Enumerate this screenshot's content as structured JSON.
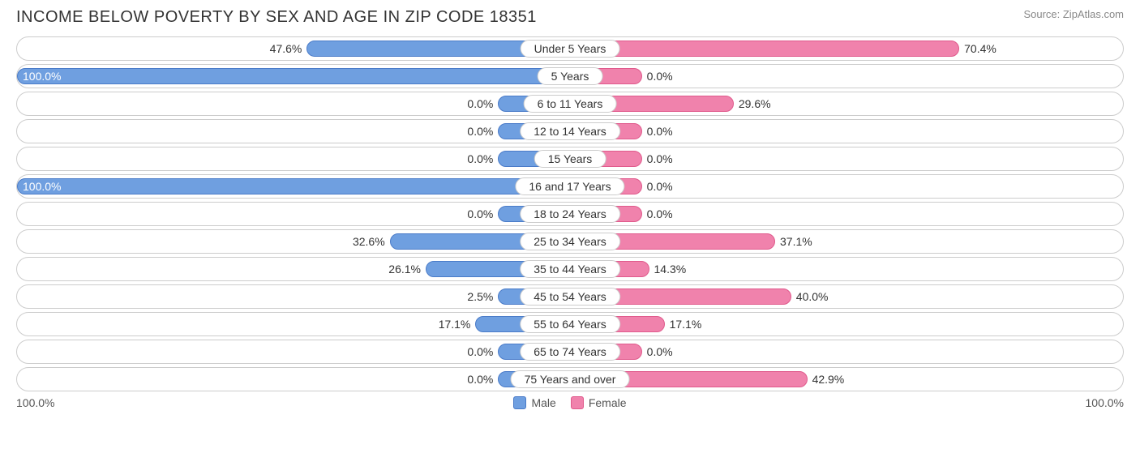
{
  "title": "INCOME BELOW POVERTY BY SEX AND AGE IN ZIP CODE 18351",
  "source": "Source: ZipAtlas.com",
  "colors": {
    "male_fill": "#6f9fe0",
    "male_border": "#4a7bc8",
    "female_fill": "#f082ac",
    "female_border": "#e05a8c",
    "row_border": "#cccccc",
    "text": "#333333",
    "background": "#ffffff"
  },
  "axis": {
    "left_max_label": "100.0%",
    "right_max_label": "100.0%",
    "max_value": 100.0
  },
  "legend": {
    "male": "Male",
    "female": "Female"
  },
  "min_bar_pct": 13.0,
  "rows": [
    {
      "category": "Under 5 Years",
      "male": 47.6,
      "female": 70.4,
      "male_label": "47.6%",
      "female_label": "70.4%"
    },
    {
      "category": "5 Years",
      "male": 100.0,
      "female": 0.0,
      "male_label": "100.0%",
      "female_label": "0.0%"
    },
    {
      "category": "6 to 11 Years",
      "male": 0.0,
      "female": 29.6,
      "male_label": "0.0%",
      "female_label": "29.6%"
    },
    {
      "category": "12 to 14 Years",
      "male": 0.0,
      "female": 0.0,
      "male_label": "0.0%",
      "female_label": "0.0%"
    },
    {
      "category": "15 Years",
      "male": 0.0,
      "female": 0.0,
      "male_label": "0.0%",
      "female_label": "0.0%"
    },
    {
      "category": "16 and 17 Years",
      "male": 100.0,
      "female": 0.0,
      "male_label": "100.0%",
      "female_label": "0.0%"
    },
    {
      "category": "18 to 24 Years",
      "male": 0.0,
      "female": 0.0,
      "male_label": "0.0%",
      "female_label": "0.0%"
    },
    {
      "category": "25 to 34 Years",
      "male": 32.6,
      "female": 37.1,
      "male_label": "32.6%",
      "female_label": "37.1%"
    },
    {
      "category": "35 to 44 Years",
      "male": 26.1,
      "female": 14.3,
      "male_label": "26.1%",
      "female_label": "14.3%"
    },
    {
      "category": "45 to 54 Years",
      "male": 2.5,
      "female": 40.0,
      "male_label": "2.5%",
      "female_label": "40.0%"
    },
    {
      "category": "55 to 64 Years",
      "male": 17.1,
      "female": 17.1,
      "male_label": "17.1%",
      "female_label": "17.1%"
    },
    {
      "category": "65 to 74 Years",
      "male": 0.0,
      "female": 0.0,
      "male_label": "0.0%",
      "female_label": "0.0%"
    },
    {
      "category": "75 Years and over",
      "male": 0.0,
      "female": 42.9,
      "male_label": "0.0%",
      "female_label": "42.9%"
    }
  ]
}
